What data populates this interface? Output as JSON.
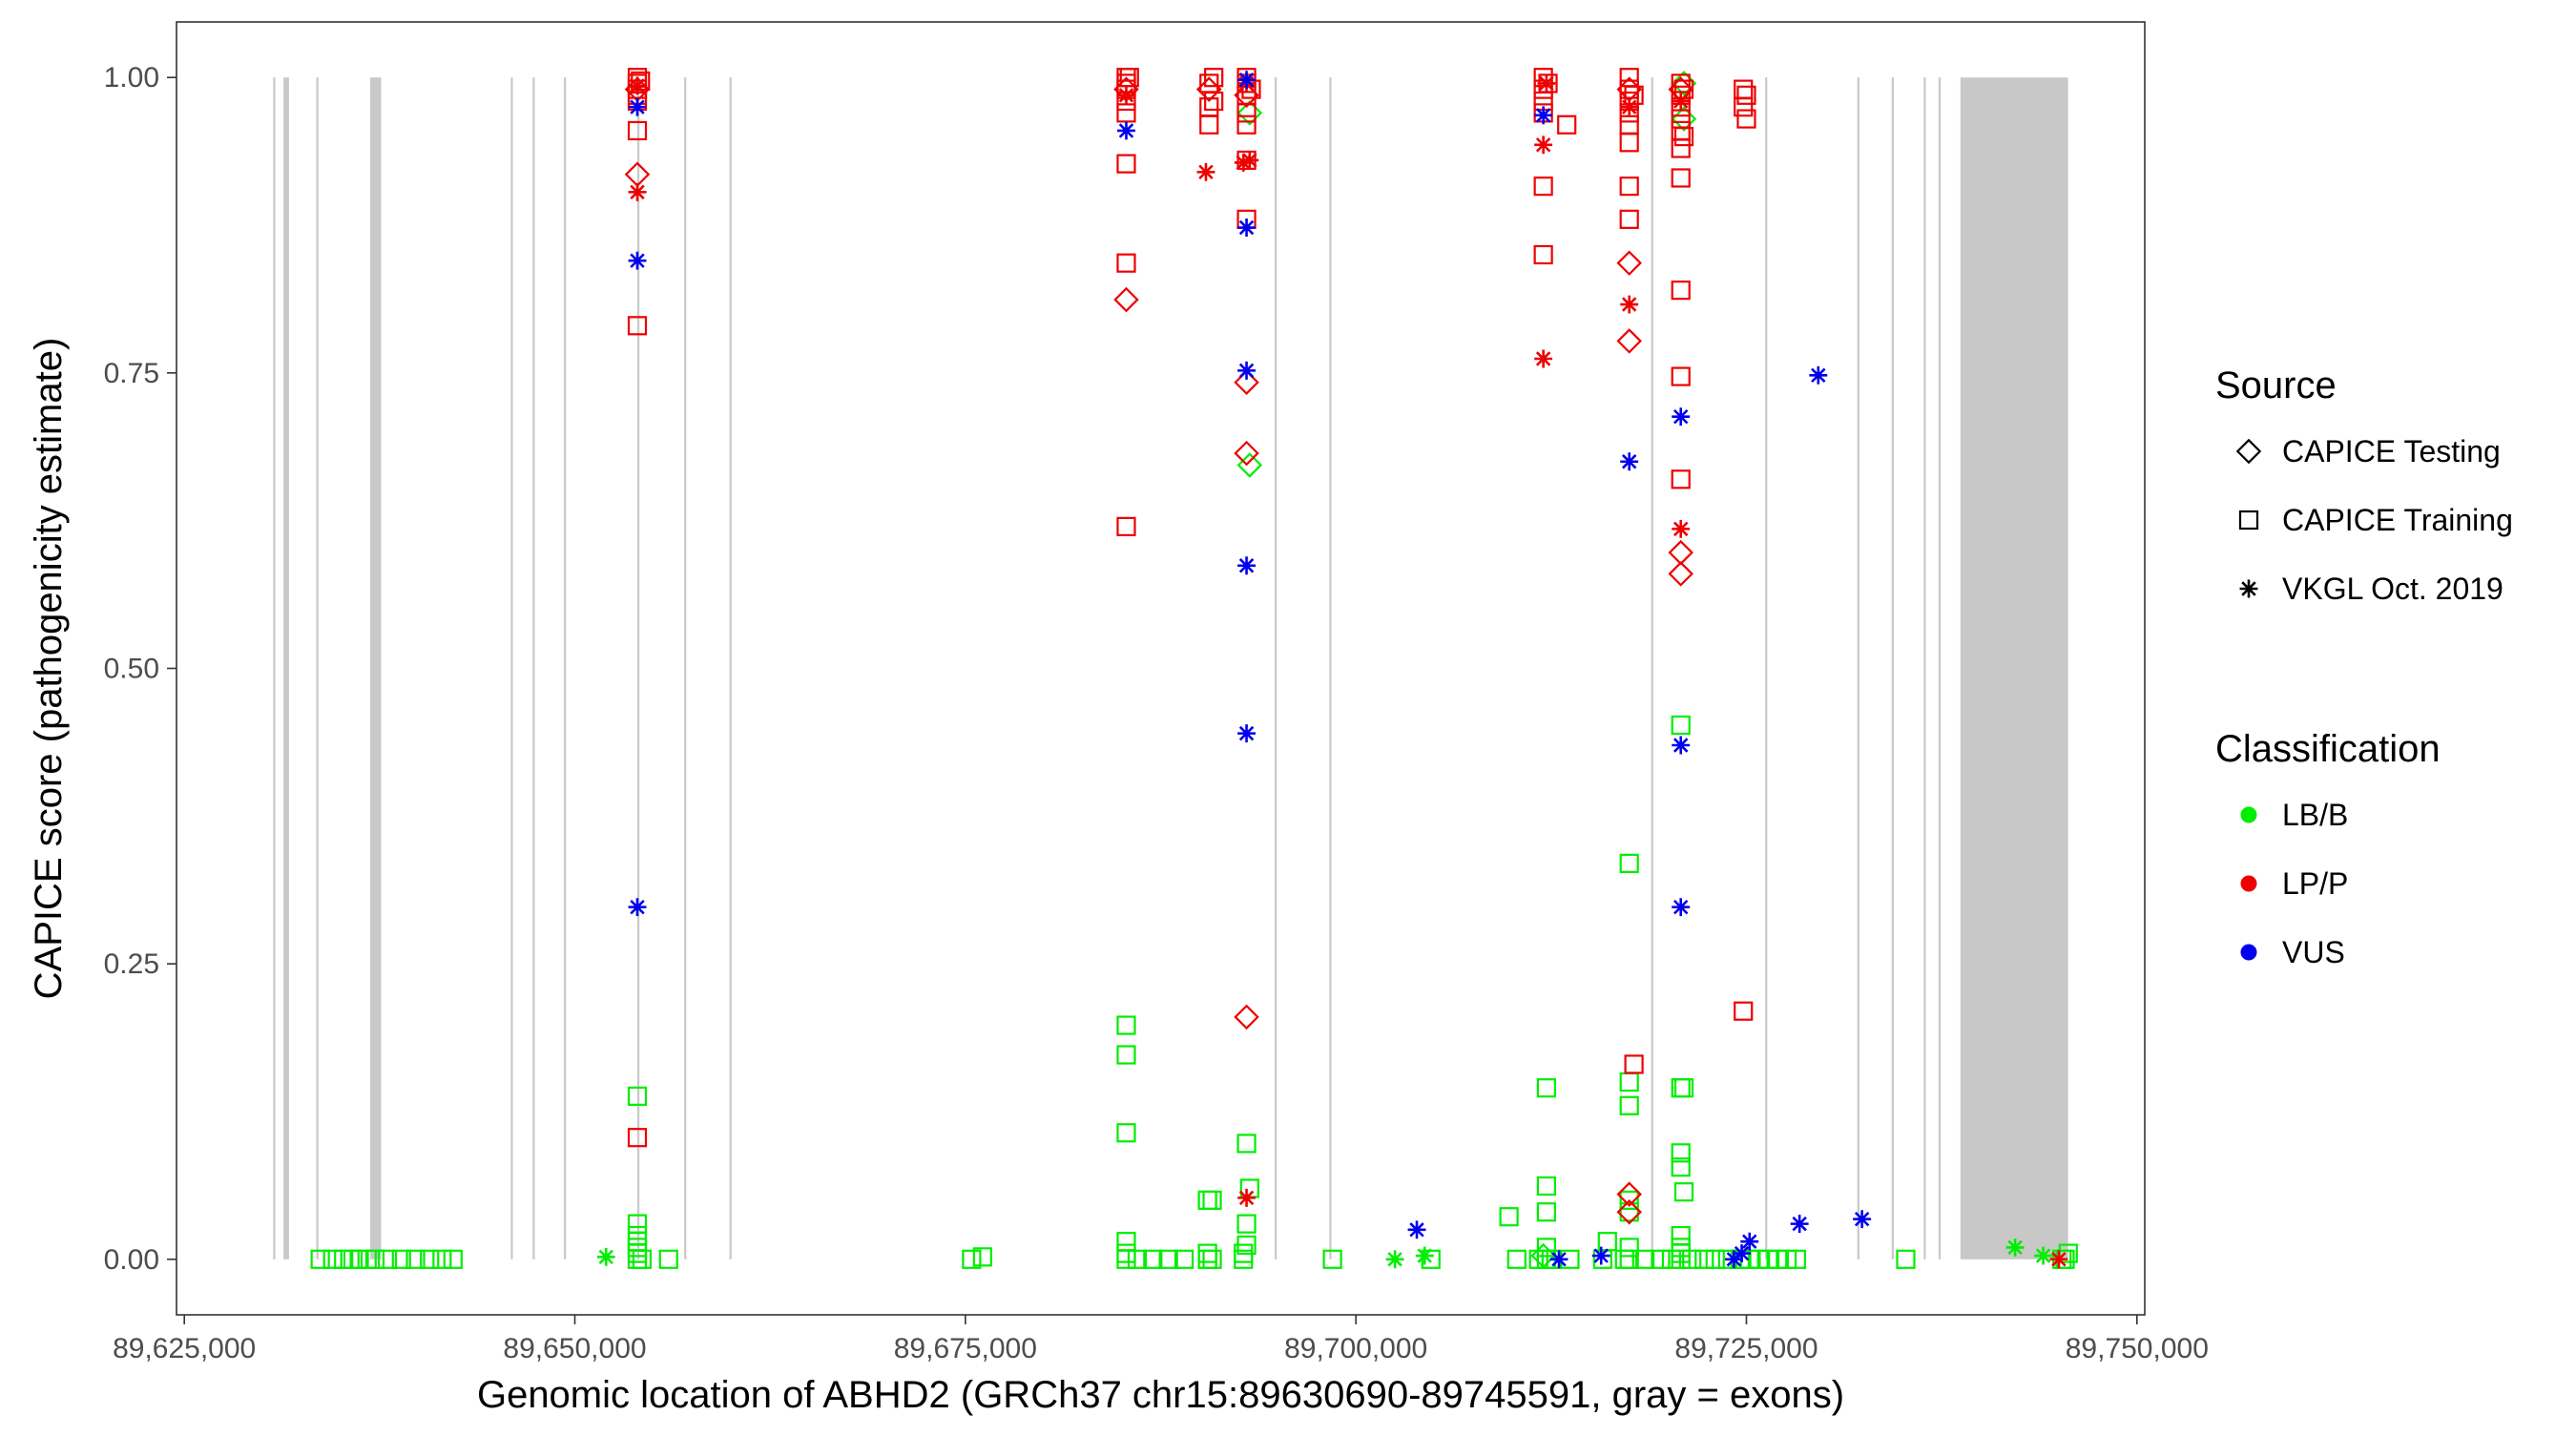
{
  "chart_data": {
    "type": "scatter",
    "title": "",
    "xlabel": "Genomic location of ABHD2 (GRCh37 chr15:89630690-89745591, gray = exons)",
    "ylabel": "CAPICE score (pathogenicity estimate)",
    "xlim": [
      89624500,
      89750500
    ],
    "ylim": [
      -0.047,
      1.047
    ],
    "x_ticks": [
      89625000,
      89650000,
      89675000,
      89700000,
      89725000,
      89750000
    ],
    "x_tick_labels": [
      "89,625,000",
      "89,650,000",
      "89,675,000",
      "89,700,000",
      "89,725,000",
      "89,750,000"
    ],
    "y_ticks": [
      0,
      0.25,
      0.5,
      0.75,
      1
    ],
    "y_tick_labels": [
      "0.00",
      "0.25",
      "0.50",
      "0.75",
      "1.00"
    ],
    "grid": false,
    "legend_position": "right",
    "exon_color": "#c8c8c8",
    "exons": [
      [
        89630690,
        89630760
      ],
      [
        89631350,
        89631700
      ],
      [
        89633450,
        89633520
      ],
      [
        89636900,
        89637600
      ],
      [
        89645900,
        89645970
      ],
      [
        89647300,
        89647370
      ],
      [
        89649300,
        89649370
      ],
      [
        89654000,
        89654080
      ],
      [
        89657000,
        89657070
      ],
      [
        89659900,
        89659970
      ],
      [
        89694800,
        89694870
      ],
      [
        89698300,
        89698370
      ],
      [
        89718900,
        89718970
      ],
      [
        89726200,
        89726270
      ],
      [
        89732100,
        89732170
      ],
      [
        89734300,
        89734370
      ],
      [
        89736350,
        89736420
      ],
      [
        89737300,
        89737370
      ],
      [
        89738700,
        89745591
      ]
    ],
    "legends": [
      {
        "title": "Source",
        "kind": "shape",
        "items": [
          {
            "label": "CAPICE Testing",
            "shape": "diamond"
          },
          {
            "label": "CAPICE Training",
            "shape": "square"
          },
          {
            "label": "VKGL Oct. 2019",
            "shape": "star"
          }
        ]
      },
      {
        "title": "Classification",
        "kind": "color",
        "items": [
          {
            "label": "LB/B",
            "color": "#00ee00"
          },
          {
            "label": "LP/P",
            "color": "#ee0000"
          },
          {
            "label": "VUS",
            "color": "#0000ee"
          }
        ]
      }
    ],
    "series": [
      {
        "classification": "LB/B",
        "source": "CAPICE Training",
        "color": "#00ee00",
        "shape": "square",
        "points": [
          [
            89633700,
            0
          ],
          [
            89634500,
            0
          ],
          [
            89635200,
            0
          ],
          [
            89635800,
            0
          ],
          [
            89636200,
            0
          ],
          [
            89636700,
            0
          ],
          [
            89637200,
            0
          ],
          [
            89638000,
            0
          ],
          [
            89638900,
            0
          ],
          [
            89639800,
            0
          ],
          [
            89640700,
            0
          ],
          [
            89641500,
            0
          ],
          [
            89642200,
            0
          ],
          [
            89654000,
            0
          ],
          [
            89654000,
            0.005
          ],
          [
            89654000,
            0.01
          ],
          [
            89654000,
            0.015
          ],
          [
            89654000,
            0.02
          ],
          [
            89654000,
            0.03
          ],
          [
            89654000,
            0.138
          ],
          [
            89654300,
            0
          ],
          [
            89656000,
            0
          ],
          [
            89675400,
            0
          ],
          [
            89676100,
            0.002
          ],
          [
            89685300,
            0
          ],
          [
            89685300,
            0.005
          ],
          [
            89685300,
            0.015
          ],
          [
            89685300,
            0.107
          ],
          [
            89685300,
            0.173
          ],
          [
            89685300,
            0.198
          ],
          [
            89686000,
            0
          ],
          [
            89687000,
            0
          ],
          [
            89688000,
            0
          ],
          [
            89689000,
            0
          ],
          [
            89690500,
            0
          ],
          [
            89690500,
            0.005
          ],
          [
            89690500,
            0.05
          ],
          [
            89690800,
            0
          ],
          [
            89690800,
            0.05
          ],
          [
            89692800,
            0
          ],
          [
            89692800,
            0.005
          ],
          [
            89693000,
            0.012
          ],
          [
            89693000,
            0.03
          ],
          [
            89693200,
            0.06
          ],
          [
            89693000,
            0.098
          ],
          [
            89698500,
            0
          ],
          [
            89704800,
            0
          ],
          [
            89709800,
            0.036
          ],
          [
            89710300,
            0
          ],
          [
            89711700,
            0
          ],
          [
            89712200,
            0
          ],
          [
            89712200,
            0.01
          ],
          [
            89712200,
            0.04
          ],
          [
            89712200,
            0.062
          ],
          [
            89712200,
            0.145
          ],
          [
            89712500,
            0
          ],
          [
            89713700,
            0
          ],
          [
            89715800,
            0
          ],
          [
            89716100,
            0.015
          ],
          [
            89717200,
            0
          ],
          [
            89717500,
            0
          ],
          [
            89717500,
            0.01
          ],
          [
            89717500,
            0.05
          ],
          [
            89717500,
            0.04
          ],
          [
            89717500,
            0.13
          ],
          [
            89717500,
            0.15
          ],
          [
            89717500,
            0.335
          ],
          [
            89718500,
            0
          ],
          [
            89719500,
            0
          ],
          [
            89720200,
            0
          ],
          [
            89720800,
            0
          ],
          [
            89720800,
            0.005
          ],
          [
            89720800,
            0.01
          ],
          [
            89720800,
            0.02
          ],
          [
            89721000,
            0.057
          ],
          [
            89720800,
            0.078
          ],
          [
            89720800,
            0.09
          ],
          [
            89720800,
            0.145
          ],
          [
            89721000,
            0.145
          ],
          [
            89720800,
            0.452
          ],
          [
            89721500,
            0
          ],
          [
            89722300,
            0
          ],
          [
            89723000,
            0
          ],
          [
            89723800,
            0
          ],
          [
            89724600,
            0
          ],
          [
            89725200,
            0
          ],
          [
            89725800,
            0
          ],
          [
            89726400,
            0
          ],
          [
            89727000,
            0
          ],
          [
            89727600,
            0
          ],
          [
            89728200,
            0
          ],
          [
            89735200,
            0
          ],
          [
            89745400,
            0
          ],
          [
            89745600,
            0.005
          ],
          [
            89745200,
            0
          ]
        ]
      },
      {
        "classification": "LB/B",
        "source": "CAPICE Testing",
        "color": "#00ee00",
        "shape": "diamond",
        "points": [
          [
            89690600,
            0.99
          ],
          [
            89693200,
            0.97
          ],
          [
            89693200,
            0.672
          ],
          [
            89721000,
            0.995
          ],
          [
            89721000,
            0.965
          ],
          [
            89712000,
            0.003
          ]
        ]
      },
      {
        "classification": "LB/B",
        "source": "VKGL Oct. 2019",
        "color": "#00ee00",
        "shape": "star",
        "points": [
          [
            89652000,
            0.002
          ],
          [
            89702500,
            0
          ],
          [
            89704400,
            0.003
          ],
          [
            89742200,
            0.01
          ],
          [
            89744000,
            0.003
          ]
        ]
      },
      {
        "classification": "LP/P",
        "source": "CAPICE Training",
        "color": "#ee0000",
        "shape": "square",
        "points": [
          [
            89654000,
            0.98
          ],
          [
            89654000,
            0.985
          ],
          [
            89654000,
            0.99
          ],
          [
            89654000,
            0.995
          ],
          [
            89654000,
            1
          ],
          [
            89654200,
            0.997
          ],
          [
            89654000,
            0.955
          ],
          [
            89654000,
            0.79
          ],
          [
            89654000,
            0.103
          ],
          [
            89685300,
            0.97
          ],
          [
            89685300,
            0.98
          ],
          [
            89685300,
            0.99
          ],
          [
            89685300,
            0.995
          ],
          [
            89685300,
            1
          ],
          [
            89685500,
            1
          ],
          [
            89685300,
            0.927
          ],
          [
            89685300,
            0.843
          ],
          [
            89685300,
            0.62
          ],
          [
            89690600,
            0.96
          ],
          [
            89690600,
            0.975
          ],
          [
            89690600,
            0.995
          ],
          [
            89690900,
            0.98
          ],
          [
            89690900,
            1
          ],
          [
            89693000,
            0.96
          ],
          [
            89693000,
            0.97
          ],
          [
            89693000,
            0.985
          ],
          [
            89693000,
            0.995
          ],
          [
            89693000,
            1
          ],
          [
            89693300,
            0.99
          ],
          [
            89693000,
            0.93
          ],
          [
            89693000,
            0.88
          ],
          [
            89712000,
            0.97
          ],
          [
            89712000,
            0.98
          ],
          [
            89712000,
            0.99
          ],
          [
            89712000,
            1
          ],
          [
            89712300,
            0.995
          ],
          [
            89712000,
            0.908
          ],
          [
            89712000,
            0.85
          ],
          [
            89713500,
            0.96
          ],
          [
            89717500,
            0.96
          ],
          [
            89717500,
            0.97
          ],
          [
            89717500,
            0.98
          ],
          [
            89717500,
            0.99
          ],
          [
            89717500,
            1
          ],
          [
            89717800,
            0.985
          ],
          [
            89717500,
            0.945
          ],
          [
            89717500,
            0.908
          ],
          [
            89717500,
            0.88
          ],
          [
            89717800,
            0.165
          ],
          [
            89720800,
            0.94
          ],
          [
            89720800,
            0.955
          ],
          [
            89720800,
            0.965
          ],
          [
            89720800,
            0.975
          ],
          [
            89720800,
            0.985
          ],
          [
            89720800,
            0.995
          ],
          [
            89721000,
            0.99
          ],
          [
            89721000,
            0.95
          ],
          [
            89720800,
            0.915
          ],
          [
            89720800,
            0.82
          ],
          [
            89720800,
            0.747
          ],
          [
            89720800,
            0.66
          ],
          [
            89724800,
            0.99
          ],
          [
            89725000,
            0.985
          ],
          [
            89724800,
            0.975
          ],
          [
            89725000,
            0.965
          ],
          [
            89724800,
            0.21
          ]
        ]
      },
      {
        "classification": "LP/P",
        "source": "CAPICE Testing",
        "color": "#ee0000",
        "shape": "diamond",
        "points": [
          [
            89654000,
            0.918
          ],
          [
            89654000,
            0.99
          ],
          [
            89685300,
            0.812
          ],
          [
            89685300,
            0.99
          ],
          [
            89690600,
            0.99
          ],
          [
            89693000,
            0.742
          ],
          [
            89693000,
            0.682
          ],
          [
            89693000,
            0.205
          ],
          [
            89693000,
            0.985
          ],
          [
            89717500,
            0.843
          ],
          [
            89717500,
            0.777
          ],
          [
            89717500,
            0.055
          ],
          [
            89717500,
            0.04
          ],
          [
            89717500,
            0.99
          ],
          [
            89720800,
            0.598
          ],
          [
            89720800,
            0.58
          ],
          [
            89720800,
            0.99
          ]
        ]
      },
      {
        "classification": "LP/P",
        "source": "VKGL Oct. 2019",
        "color": "#ee0000",
        "shape": "star",
        "points": [
          [
            89654000,
            0.903
          ],
          [
            89654000,
            0.993
          ],
          [
            89685300,
            0.985
          ],
          [
            89690400,
            0.92
          ],
          [
            89692800,
            0.928
          ],
          [
            89693200,
            0.93
          ],
          [
            89693000,
            0.052
          ],
          [
            89693000,
            0.995
          ],
          [
            89712000,
            0.762
          ],
          [
            89712000,
            0.943
          ],
          [
            89712200,
            0.995
          ],
          [
            89717500,
            0.808
          ],
          [
            89717500,
            0.975
          ],
          [
            89720800,
            0.618
          ],
          [
            89720800,
            0.98
          ],
          [
            89745000,
            0
          ]
        ]
      },
      {
        "classification": "VUS",
        "source": "VKGL Oct. 2019",
        "color": "#0000ee",
        "shape": "star",
        "points": [
          [
            89654000,
            0.975
          ],
          [
            89654000,
            0.845
          ],
          [
            89654000,
            0.298
          ],
          [
            89685300,
            0.955
          ],
          [
            89693000,
            0.998
          ],
          [
            89693000,
            0.873
          ],
          [
            89693000,
            0.752
          ],
          [
            89693000,
            0.587
          ],
          [
            89693000,
            0.445
          ],
          [
            89703900,
            0.025
          ],
          [
            89712000,
            0.968
          ],
          [
            89713000,
            0
          ],
          [
            89715700,
            0.003
          ],
          [
            89717500,
            0.675
          ],
          [
            89720800,
            0.713
          ],
          [
            89720800,
            0.435
          ],
          [
            89720800,
            0.298
          ],
          [
            89724200,
            0
          ],
          [
            89724700,
            0.005
          ],
          [
            89725200,
            0.015
          ],
          [
            89728400,
            0.03
          ],
          [
            89729600,
            0.748
          ],
          [
            89732400,
            0.034
          ]
        ]
      }
    ]
  }
}
